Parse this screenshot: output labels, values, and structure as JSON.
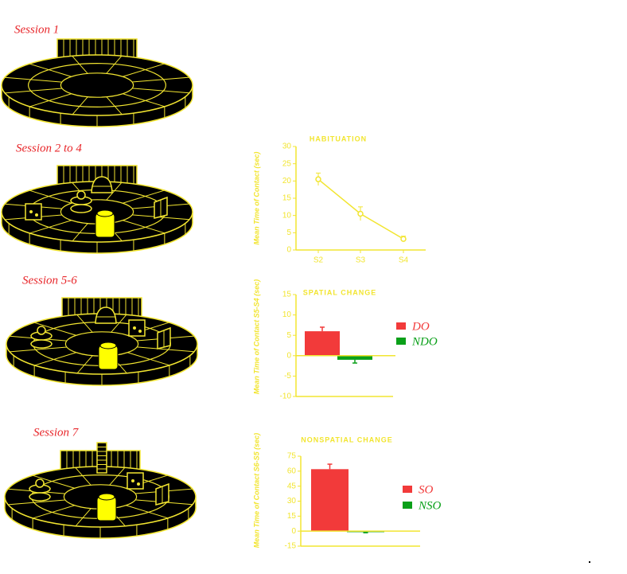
{
  "arena_labels": [
    "Session  1",
    "Session 2 to 4",
    "Session  5-6",
    "Session  7"
  ],
  "chart_data": [
    {
      "type": "line",
      "title": "HABITUATION",
      "y_label": "Mean Time of Contact (sec)",
      "categories": [
        "S2",
        "S3",
        "S4"
      ],
      "values": [
        20.5,
        10.5,
        3.2
      ],
      "errors": [
        1.8,
        2,
        0.8
      ],
      "color": "#f2e530",
      "ylim": [
        0,
        30
      ],
      "yticks": [
        0,
        5,
        10,
        15,
        20,
        25,
        30
      ]
    },
    {
      "type": "bar",
      "title": "SPATIAL CHANGE",
      "y_label": "Mean Time of Contact S5-S4 (sec)",
      "series": [
        {
          "name": "DO",
          "color": "#f23a3a",
          "values": [
            6
          ],
          "errors": [
            1
          ]
        },
        {
          "name": "NDO",
          "color": "#0aa019",
          "values": [
            -1
          ],
          "errors": [
            0.8
          ]
        }
      ],
      "ylim": [
        -10,
        15
      ],
      "yticks": [
        -10,
        -5,
        0,
        5,
        10,
        15
      ],
      "legend": "right"
    },
    {
      "type": "bar",
      "title": "NONSPATIAL CHANGE",
      "y_label": "Mean Time of Contact S6-S5 (sec)",
      "series": [
        {
          "name": "SO",
          "color": "#f23a3a",
          "values": [
            62
          ],
          "errors": [
            5
          ]
        },
        {
          "name": "NSO",
          "color": "#0aa019",
          "values": [
            -1
          ],
          "errors": [
            0.6
          ]
        }
      ],
      "ylim": [
        -15,
        75
      ],
      "yticks": [
        -15,
        0,
        15,
        30,
        45,
        60,
        75
      ],
      "legend": "right"
    }
  ]
}
